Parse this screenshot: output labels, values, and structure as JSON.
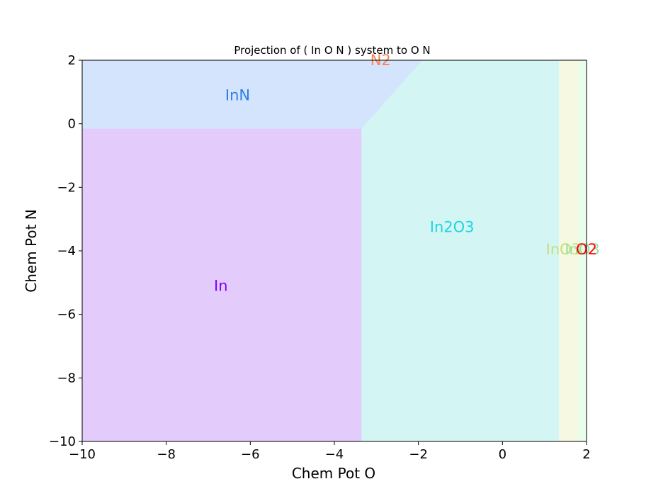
{
  "chart_data": {
    "type": "area",
    "title": "Projection of ( In O N ) system to O N",
    "xlabel": "Chem Pot O",
    "ylabel": "Chem Pot N",
    "xlim": [
      -10,
      2
    ],
    "ylim": [
      -10,
      2
    ],
    "xticks": [
      -10,
      -8,
      -6,
      -4,
      -2,
      0,
      2
    ],
    "yticks": [
      2,
      0,
      -2,
      -4,
      -6,
      -8,
      -10
    ],
    "xtick_labels": [
      "−10",
      "−8",
      "−6",
      "−4",
      "−2",
      "0",
      "2"
    ],
    "ytick_labels": [
      "2",
      "0",
      "−2",
      "−4",
      "−6",
      "−8",
      "−10"
    ],
    "grid": false,
    "regions": [
      {
        "name": "In",
        "fill": "#e3ccfc",
        "label_color": "#7f00ff",
        "polygon": [
          [
            -10,
            -10
          ],
          [
            -3.35,
            -10
          ],
          [
            -3.35,
            -0.15
          ],
          [
            -10,
            -0.15
          ]
        ],
        "label_at": [
          -6.7,
          -5.1
        ]
      },
      {
        "name": "InN",
        "fill": "#d4e4fc",
        "label_color": "#2f7fe6",
        "polygon": [
          [
            -10,
            -0.15
          ],
          [
            -3.35,
            -0.15
          ],
          [
            -1.9,
            2
          ],
          [
            -10,
            2
          ]
        ],
        "label_at": [
          -6.3,
          0.9
        ]
      },
      {
        "name": "In2O3",
        "fill": "#d3f6f5",
        "label_color": "#1fd5dd",
        "polygon": [
          [
            -3.35,
            -10
          ],
          [
            1.35,
            -10
          ],
          [
            1.35,
            2
          ],
          [
            -1.9,
            2
          ],
          [
            -3.35,
            -0.15
          ]
        ],
        "label_at": [
          -1.2,
          -3.25
        ]
      },
      {
        "name": "InO3",
        "fill": "#f6f8e2",
        "label_color": "#c4df7a",
        "polygon": [
          [
            1.35,
            -10
          ],
          [
            1.8,
            -10
          ],
          [
            1.8,
            2
          ],
          [
            1.35,
            2
          ]
        ],
        "label_at": [
          1.45,
          -3.95
        ]
      },
      {
        "name": "InO3",
        "fill": "#eafcea",
        "label_color": "#8fe3a0",
        "polygon": [
          [
            1.8,
            -10
          ],
          [
            2,
            -10
          ],
          [
            2,
            2
          ],
          [
            1.8,
            2
          ]
        ],
        "label_at": [
          1.9,
          -3.95
        ]
      },
      {
        "name": "O2",
        "fill": "none",
        "label_color": "#ff0000",
        "polygon": [],
        "label_at": [
          2.0,
          -3.95
        ]
      },
      {
        "name": "N2",
        "fill": "none",
        "label_color": "#ff7f50",
        "polygon": [],
        "label_at": [
          -2.9,
          2.0
        ]
      }
    ]
  }
}
